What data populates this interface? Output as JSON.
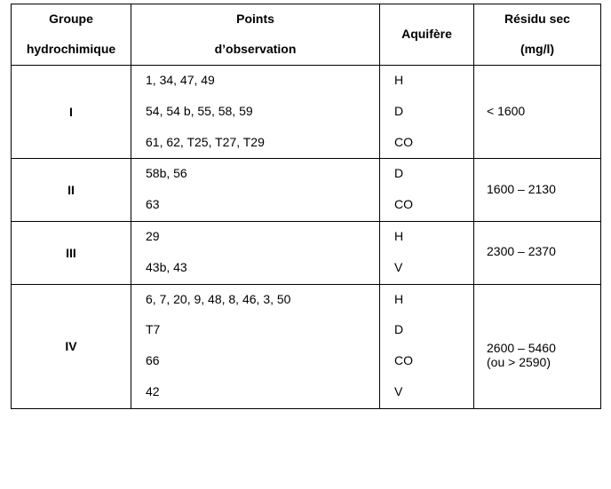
{
  "headers": {
    "group_l1": "Groupe",
    "group_l2": "hydrochimique",
    "points_l1": "Points",
    "points_l2": "d’observation",
    "aquifer": "Aquifère",
    "residu_l1": "Résidu sec",
    "residu_l2": "(mg/l)"
  },
  "rows": [
    {
      "group": "I",
      "points": [
        "1, 34, 47, 49",
        "54, 54 b, 55, 58, 59",
        "61, 62, T25, T27, T29"
      ],
      "aquifer": [
        "H",
        "D",
        "CO"
      ],
      "residu": [
        "< 1600"
      ]
    },
    {
      "group": "II",
      "points": [
        "58b, 56",
        "63"
      ],
      "aquifer": [
        "D",
        "CO"
      ],
      "residu": [
        "1600 – 2130"
      ]
    },
    {
      "group": "III",
      "points": [
        "29",
        "43b, 43"
      ],
      "aquifer": [
        "H",
        "V"
      ],
      "residu": [
        "2300 – 2370"
      ]
    },
    {
      "group": "IV",
      "points": [
        "6, 7, 20, 9, 48, 8, 46, 3, 50",
        "T7",
        "66",
        "42"
      ],
      "aquifer": [
        "H",
        "D",
        "CO",
        "V"
      ],
      "residu": [
        "2600 – 5460",
        "(ou > 2590)"
      ]
    }
  ]
}
